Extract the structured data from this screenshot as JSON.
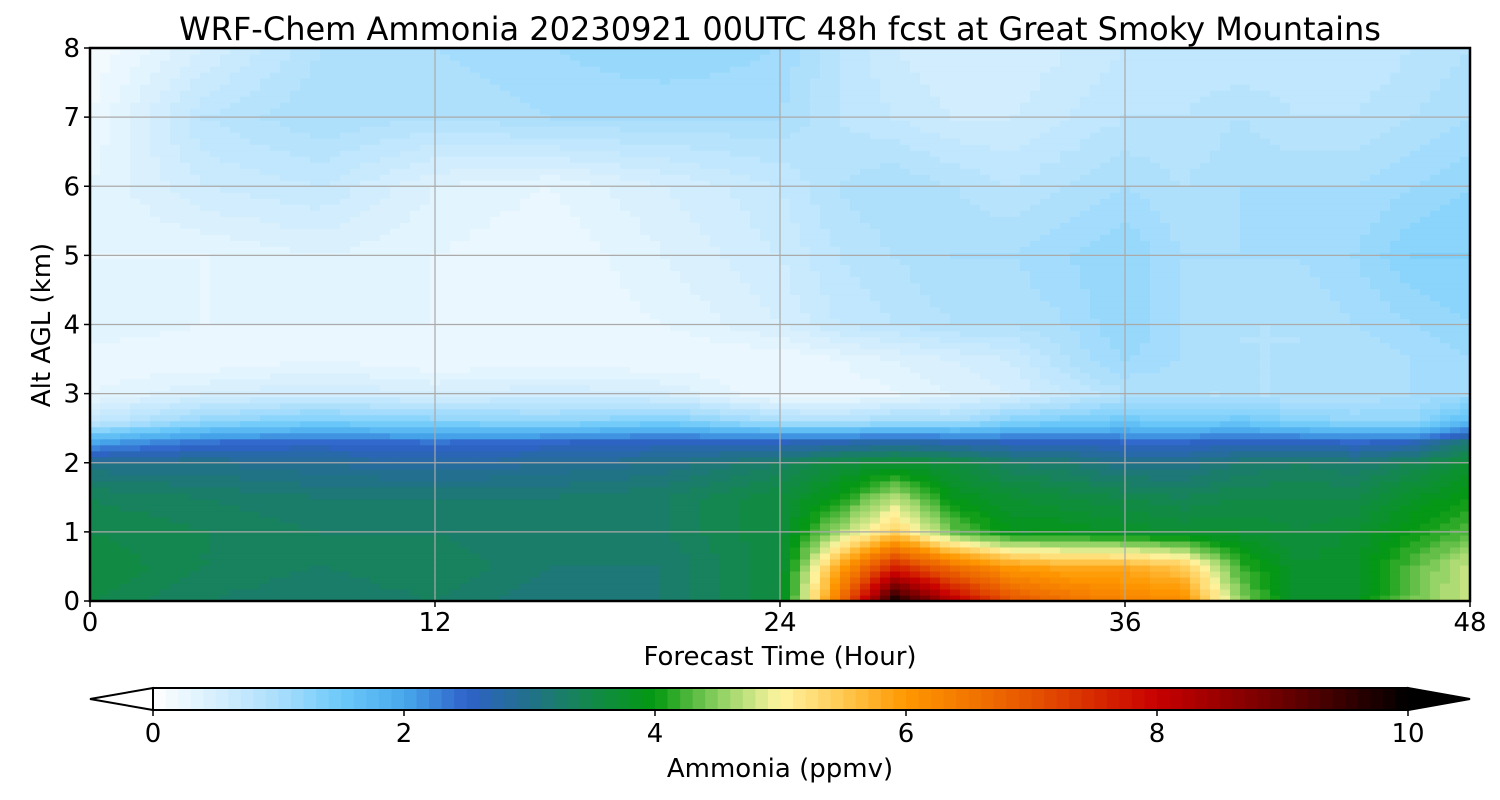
{
  "chart_data": {
    "type": "heatmap",
    "title": "WRF-Chem Ammonia  20230921 00UTC 48h fcst at Great Smoky Mountains",
    "xlabel": "Forecast Time (Hour)",
    "ylabel": "Alt AGL (km)",
    "xlim": [
      0,
      48
    ],
    "ylim": [
      0,
      8
    ],
    "xticks": [
      0,
      12,
      24,
      36,
      48
    ],
    "yticks": [
      0,
      1,
      2,
      3,
      4,
      5,
      6,
      7,
      8
    ],
    "grid": true,
    "x": [
      0,
      4,
      8,
      12,
      16,
      20,
      24,
      26,
      28,
      30,
      32,
      34,
      36,
      38,
      40,
      42,
      44,
      46,
      48
    ],
    "y": [
      0,
      0.5,
      1,
      1.5,
      2,
      2.3,
      2.6,
      3,
      3.5,
      4,
      5,
      6,
      7,
      8
    ],
    "z": [
      [
        3.5,
        3.3,
        3.2,
        3.3,
        3.1,
        3.2,
        3.6,
        6.4,
        9.8,
        8.2,
        7.0,
        6.6,
        6.3,
        6.2,
        4.5,
        3.7,
        3.8,
        4.4,
        4.8
      ],
      [
        3.6,
        3.4,
        3.3,
        3.4,
        3.2,
        3.2,
        3.6,
        5.8,
        7.6,
        6.6,
        6.0,
        5.8,
        5.8,
        5.5,
        4.2,
        3.7,
        3.8,
        4.3,
        4.8
      ],
      [
        3.5,
        3.4,
        3.3,
        3.3,
        3.2,
        3.3,
        3.6,
        4.6,
        5.4,
        4.4,
        3.9,
        3.9,
        3.8,
        3.7,
        3.7,
        3.6,
        3.7,
        4.0,
        4.3
      ],
      [
        3.4,
        3.3,
        3.2,
        3.2,
        3.2,
        3.3,
        3.6,
        4.0,
        4.7,
        3.9,
        3.7,
        3.6,
        3.5,
        3.4,
        3.5,
        3.5,
        3.5,
        3.8,
        4.0
      ],
      [
        3.0,
        3.0,
        2.9,
        2.8,
        2.9,
        3.0,
        3.3,
        3.6,
        3.7,
        3.6,
        3.3,
        3.2,
        3.0,
        3.0,
        3.2,
        3.3,
        3.2,
        3.4,
        3.7
      ],
      [
        2.0,
        2.4,
        2.5,
        2.4,
        2.5,
        2.6,
        2.6,
        2.7,
        2.8,
        2.7,
        2.6,
        2.6,
        2.5,
        2.5,
        2.6,
        2.6,
        2.5,
        2.6,
        3.2
      ],
      [
        0.7,
        1.2,
        1.4,
        1.3,
        1.2,
        1.4,
        1.0,
        0.9,
        1.1,
        1.0,
        1.3,
        1.4,
        1.5,
        1.4,
        1.5,
        1.3,
        1.2,
        1.2,
        1.7
      ],
      [
        0.3,
        0.5,
        0.6,
        0.5,
        0.6,
        0.5,
        0.2,
        0.2,
        0.3,
        0.4,
        0.5,
        0.7,
        0.9,
        0.9,
        0.9,
        0.9,
        0.9,
        1.0,
        1.1
      ],
      [
        0.2,
        0.2,
        0.3,
        0.2,
        0.2,
        0.2,
        0.2,
        0.3,
        0.4,
        0.5,
        0.6,
        0.9,
        1.1,
        1.0,
        0.9,
        0.9,
        0.9,
        1.0,
        1.1
      ],
      [
        0.4,
        0.3,
        0.3,
        0.3,
        0.2,
        0.3,
        0.5,
        0.7,
        0.8,
        0.9,
        0.9,
        1.0,
        1.2,
        1.0,
        0.9,
        0.9,
        1.0,
        1.1,
        1.2
      ],
      [
        0.3,
        0.3,
        0.4,
        0.3,
        0.2,
        0.4,
        0.6,
        0.8,
        0.9,
        1.0,
        1.0,
        1.1,
        1.2,
        1.0,
        1.0,
        1.0,
        1.1,
        1.3,
        1.3
      ],
      [
        0.3,
        0.6,
        0.7,
        0.4,
        0.3,
        0.5,
        0.7,
        0.9,
        1.0,
        0.9,
        0.8,
        0.9,
        1.0,
        0.9,
        1.0,
        1.0,
        1.0,
        1.1,
        1.2
      ],
      [
        0.2,
        0.8,
        1.0,
        0.9,
        1.0,
        1.0,
        1.0,
        0.8,
        0.7,
        0.6,
        0.6,
        0.7,
        0.8,
        0.8,
        0.9,
        0.8,
        0.8,
        0.9,
        1.0
      ],
      [
        0.1,
        0.5,
        0.9,
        1.0,
        1.1,
        1.2,
        1.1,
        0.8,
        0.6,
        0.5,
        0.5,
        0.6,
        0.7,
        0.7,
        0.7,
        0.7,
        0.7,
        0.8,
        0.9
      ]
    ],
    "colorbar": {
      "label": "Ammonia  (ppmv)",
      "min": 0,
      "max": 10,
      "ticks": [
        0,
        2,
        4,
        6,
        8,
        10
      ],
      "extend": "both",
      "stops": [
        {
          "v": 0.0,
          "c": "#ffffff"
        },
        {
          "v": 0.5,
          "c": "#d6effd"
        },
        {
          "v": 1.0,
          "c": "#a9defc"
        },
        {
          "v": 1.5,
          "c": "#6cc9f9"
        },
        {
          "v": 2.0,
          "c": "#48a8ec"
        },
        {
          "v": 2.5,
          "c": "#2e62c8"
        },
        {
          "v": 3.0,
          "c": "#22708a"
        },
        {
          "v": 3.5,
          "c": "#128a4a"
        },
        {
          "v": 4.0,
          "c": "#049810"
        },
        {
          "v": 4.5,
          "c": "#8cd060"
        },
        {
          "v": 5.0,
          "c": "#fff5a2"
        },
        {
          "v": 5.5,
          "c": "#ffc850"
        },
        {
          "v": 6.0,
          "c": "#ff9800"
        },
        {
          "v": 7.0,
          "c": "#e65400"
        },
        {
          "v": 8.0,
          "c": "#c80000"
        },
        {
          "v": 9.0,
          "c": "#6a0000"
        },
        {
          "v": 10.0,
          "c": "#000000"
        }
      ]
    }
  }
}
